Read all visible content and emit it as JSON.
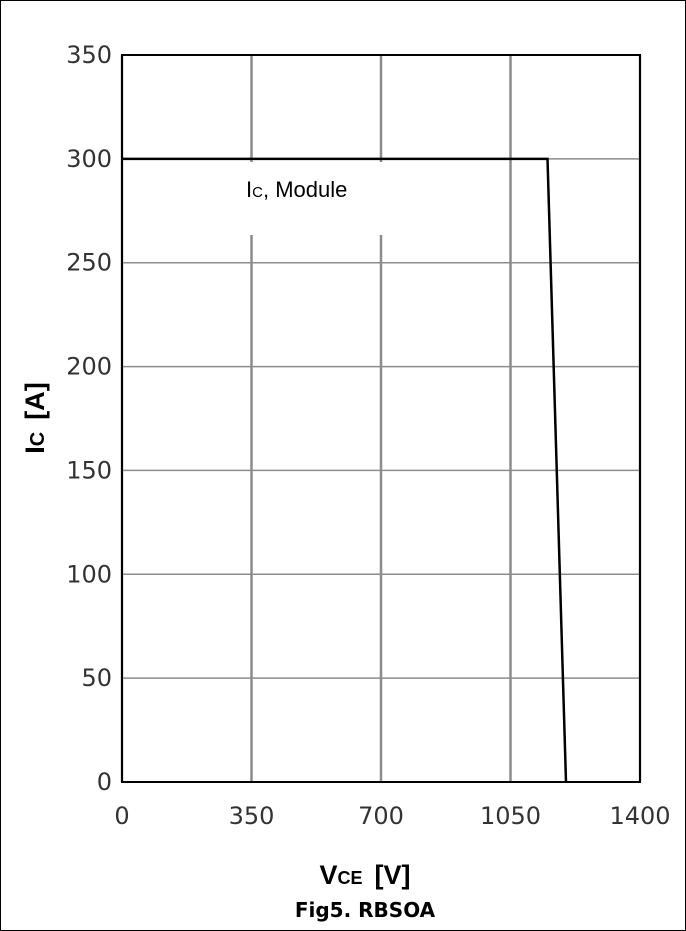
{
  "chart_data": {
    "type": "line",
    "title": "",
    "caption": "Fig5. RBSOA",
    "xlabel": {
      "main": "V",
      "sub": "CE",
      "unit": "[V]"
    },
    "ylabel": {
      "main": "I",
      "sub": "C",
      "unit": "[A]"
    },
    "xlim": [
      0,
      1400
    ],
    "ylim": [
      0,
      350
    ],
    "x_ticks": [
      "0",
      "350",
      "700",
      "1050",
      "1400"
    ],
    "y_ticks": [
      "0",
      "50",
      "100",
      "150",
      "200",
      "250",
      "300",
      "350"
    ],
    "grid": true,
    "annotation": {
      "main": "I",
      "sub": "C",
      "rest": ", Module"
    },
    "series": [
      {
        "color": "#000000",
        "x": [
          0,
          1150,
          1200
        ],
        "y": [
          300,
          300,
          0
        ]
      }
    ]
  }
}
